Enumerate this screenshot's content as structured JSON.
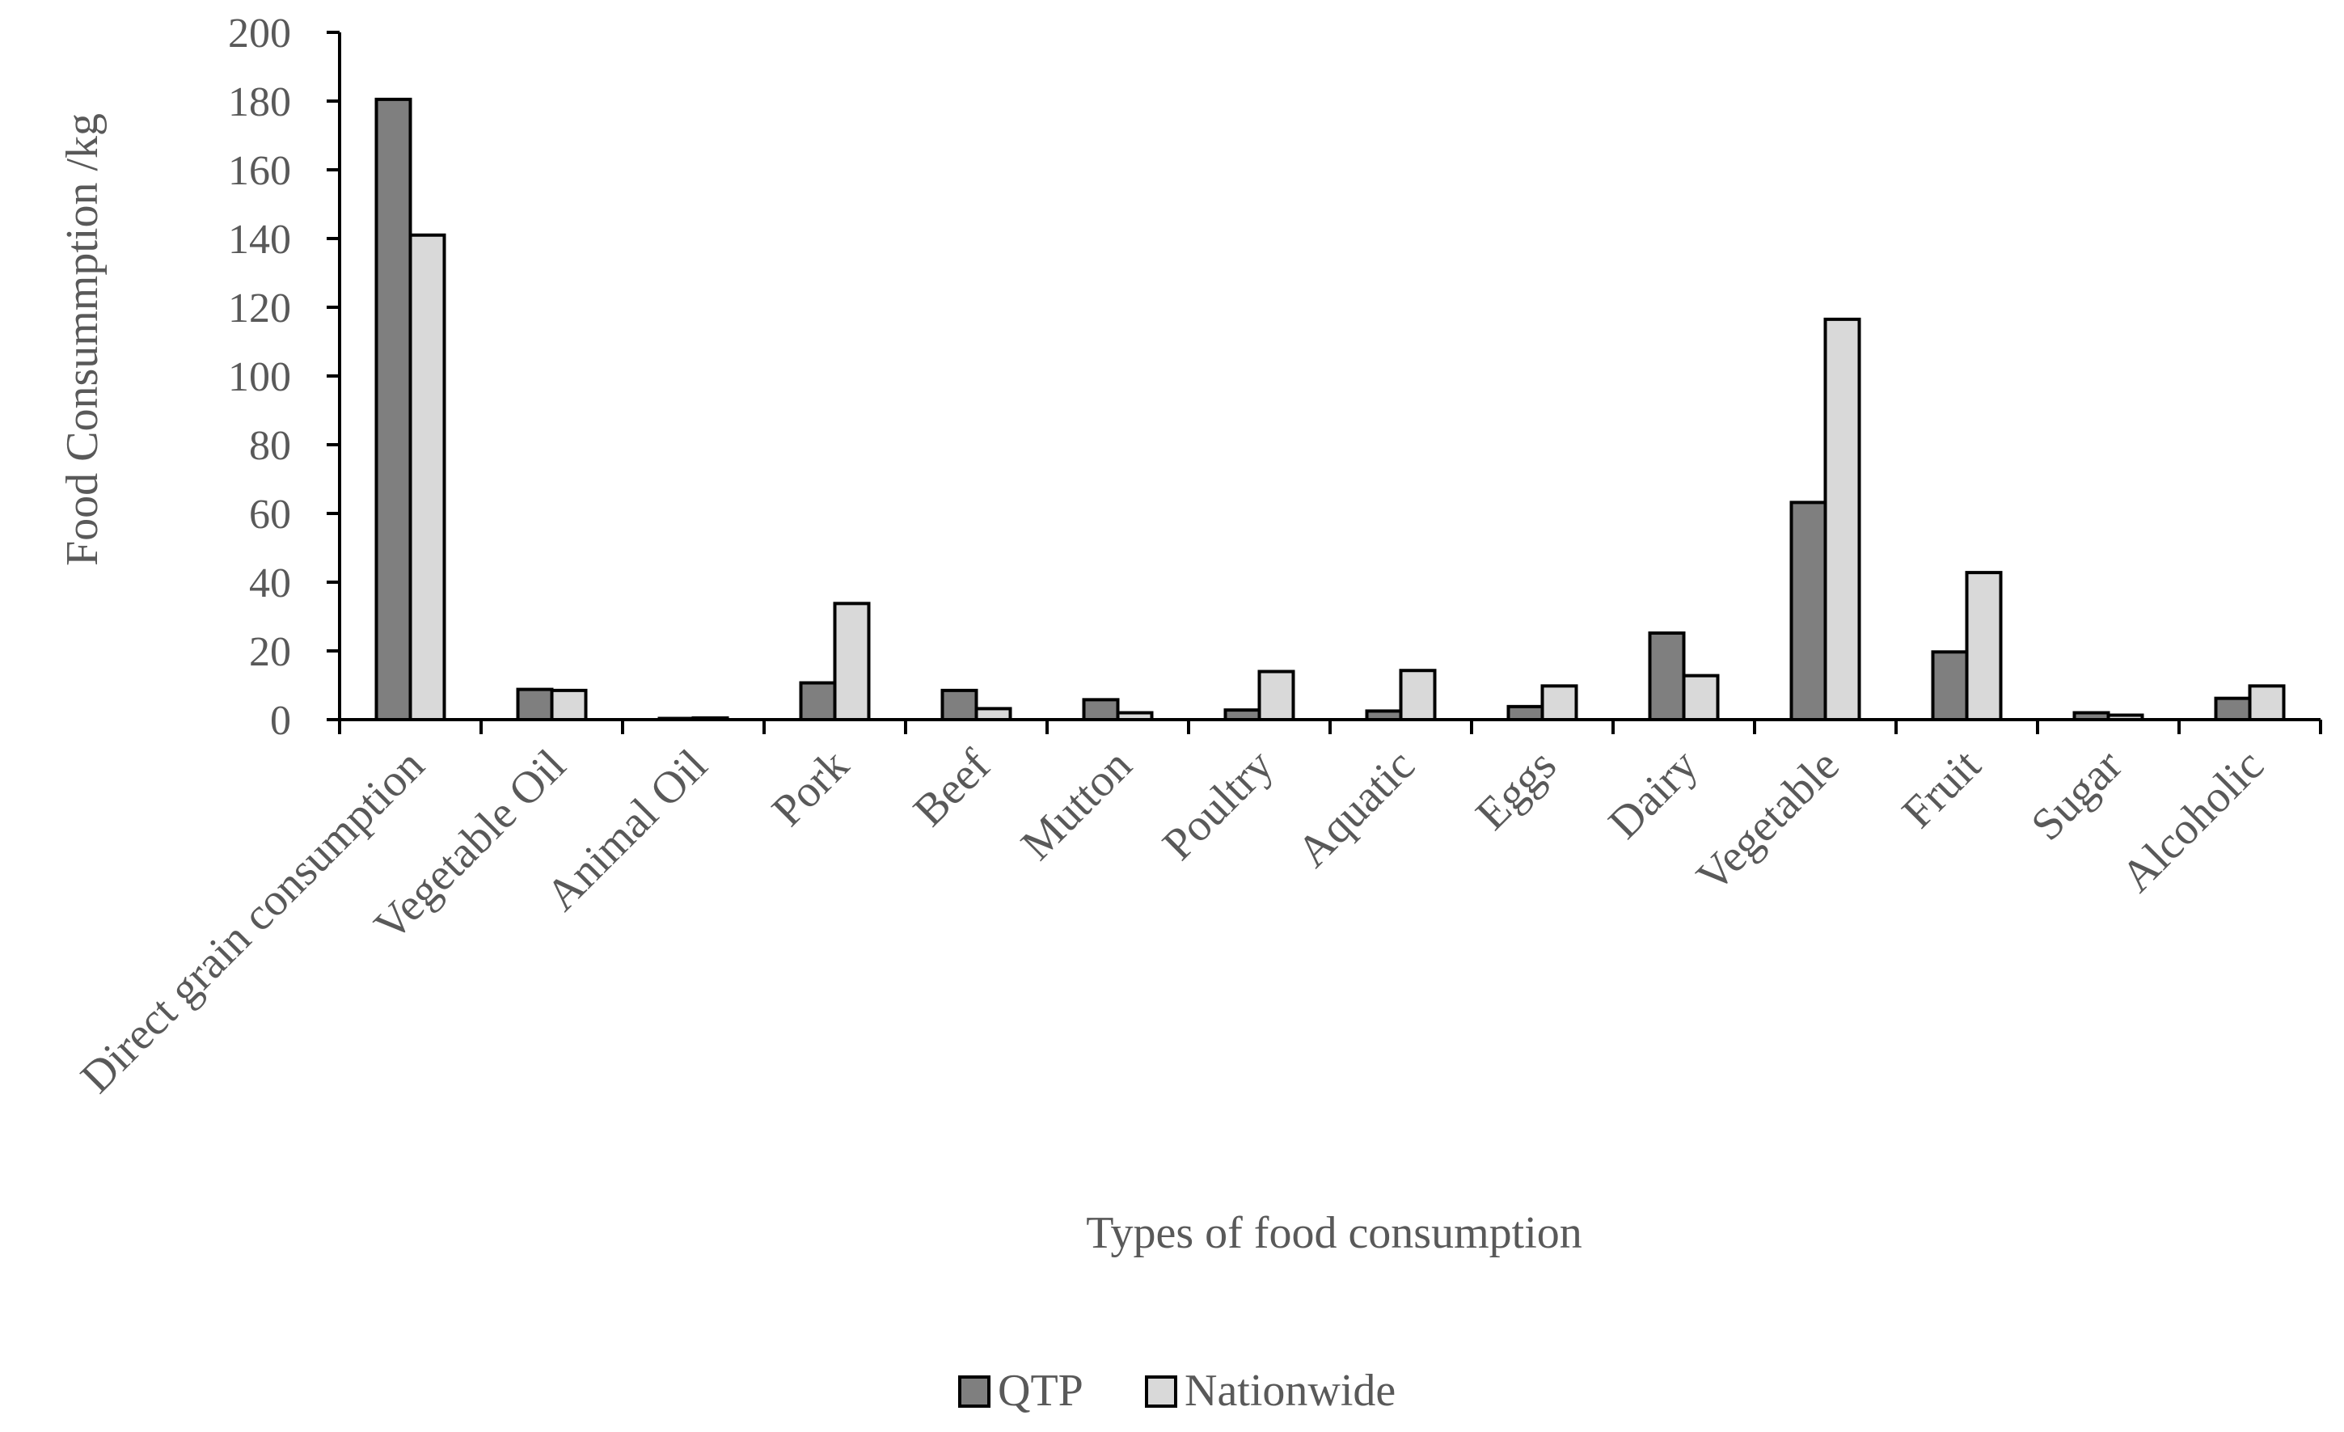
{
  "chart_data": {
    "type": "bar",
    "title": "",
    "xlabel": "Types of food consumption",
    "ylabel": "Food Consummption /kg",
    "ylim": [
      0,
      200
    ],
    "yticks": [
      0,
      20,
      40,
      60,
      80,
      100,
      120,
      140,
      160,
      180,
      200
    ],
    "grid": false,
    "legend_position": "bottom-center",
    "categories": [
      "Direct grain consumption",
      "Vegetable Oil",
      "Animal Oil",
      "Pork",
      "Beef",
      "Mutton",
      "Poultry",
      "Aquatic",
      "Eggs",
      "Dairy",
      "Vegetable",
      "Fruit",
      "Sugar",
      "Alcoholic"
    ],
    "series": [
      {
        "name": "QTP",
        "color": "#7f7f7f",
        "values": [
          180.5,
          8.8,
          0.3,
          10.7,
          8.5,
          5.8,
          2.8,
          2.5,
          3.8,
          25.2,
          63.2,
          19.7,
          2.0,
          6.2
        ]
      },
      {
        "name": "Nationwide",
        "color": "#d9d9d9",
        "values": [
          141.0,
          8.5,
          0.5,
          33.8,
          3.2,
          2.0,
          14.0,
          14.3,
          9.8,
          12.8,
          116.5,
          42.8,
          1.3,
          9.8
        ]
      }
    ]
  }
}
